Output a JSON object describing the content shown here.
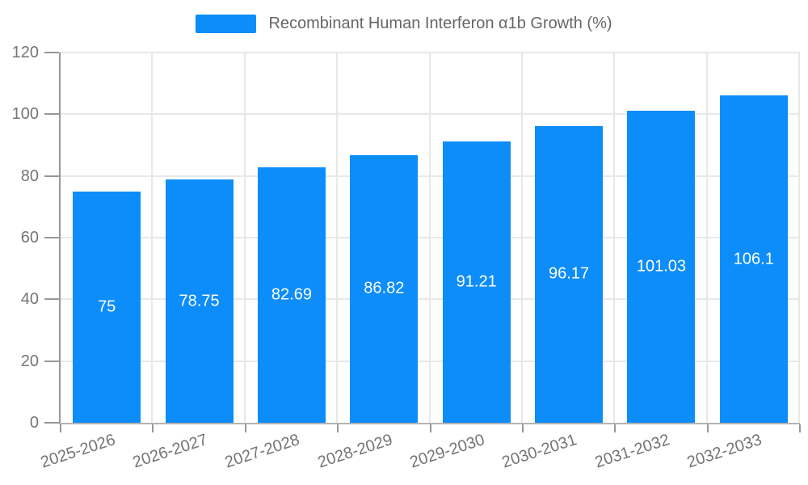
{
  "chart_data": {
    "type": "bar",
    "title": "Recombinant Human Interferon α1b Growth (%)",
    "xlabel": "",
    "ylabel": "",
    "categories": [
      "2025-2026",
      "2026-2027",
      "2027-2028",
      "2028-2029",
      "2029-2030",
      "2030-2031",
      "2031-2032",
      "2032-2033"
    ],
    "values": [
      75,
      78.75,
      82.69,
      86.82,
      91.21,
      96.17,
      101.03,
      106.1
    ],
    "value_labels": [
      "75",
      "78.75",
      "82.69",
      "86.82",
      "91.21",
      "96.17",
      "101.03",
      "106.1"
    ],
    "ylim": [
      0,
      120
    ],
    "yticks": [
      0,
      20,
      40,
      60,
      80,
      100,
      120
    ],
    "grid": true,
    "legend_position": "top-center",
    "x_label_rotation_deg": -18,
    "bar_color": "#0d8df9",
    "value_label_color": "#ffffff",
    "grid_color": "#e8e8e8",
    "y_axis_color": "#979797",
    "x_axis_color": "#b3b3b3",
    "tick_label_color": "#757575",
    "legend_text_color": "#666666"
  }
}
